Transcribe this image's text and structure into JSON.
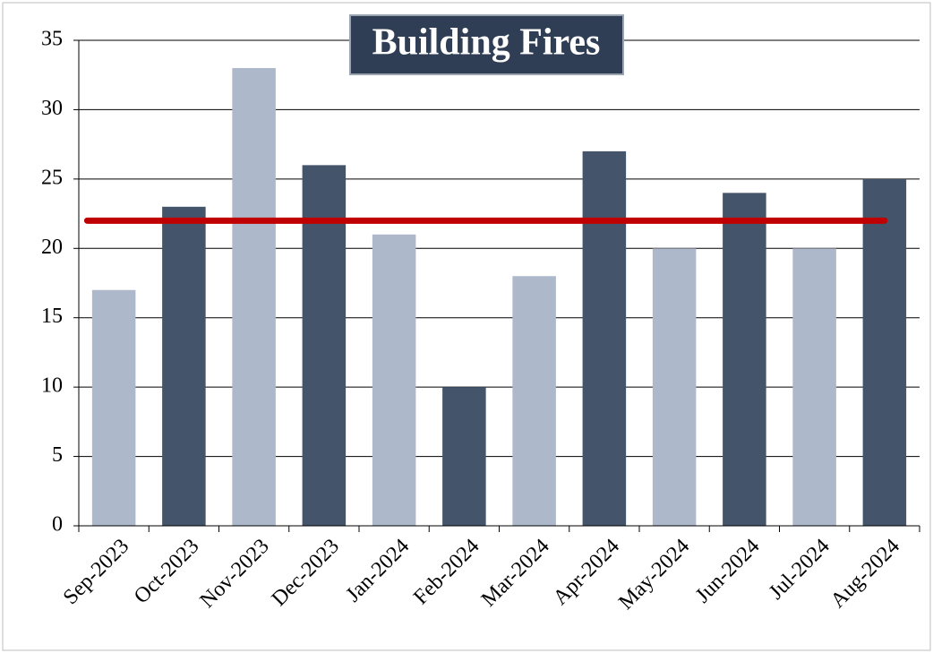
{
  "chart_data": {
    "type": "bar",
    "title": "Building Fires",
    "categories": [
      "Sep-2023",
      "Oct-2023",
      "Nov-2023",
      "Dec-2023",
      "Jan-2024",
      "Feb-2024",
      "Mar-2024",
      "Apr-2024",
      "May-2024",
      "Jun-2024",
      "Jul-2024",
      "Aug-2024"
    ],
    "values": [
      17,
      23,
      33,
      26,
      21,
      10,
      18,
      27,
      20,
      24,
      20,
      25
    ],
    "colors": [
      "#adb9ca",
      "#44546a",
      "#adb9ca",
      "#44546a",
      "#adb9ca",
      "#44546a",
      "#adb9ca",
      "#44546a",
      "#adb9ca",
      "#44546a",
      "#adb9ca",
      "#44546a"
    ],
    "reference_line": {
      "value": 22,
      "color": "#c00000"
    },
    "ylim": [
      0,
      35
    ],
    "yticks": [
      0,
      5,
      10,
      15,
      20,
      25,
      30,
      35
    ],
    "grid": true
  }
}
